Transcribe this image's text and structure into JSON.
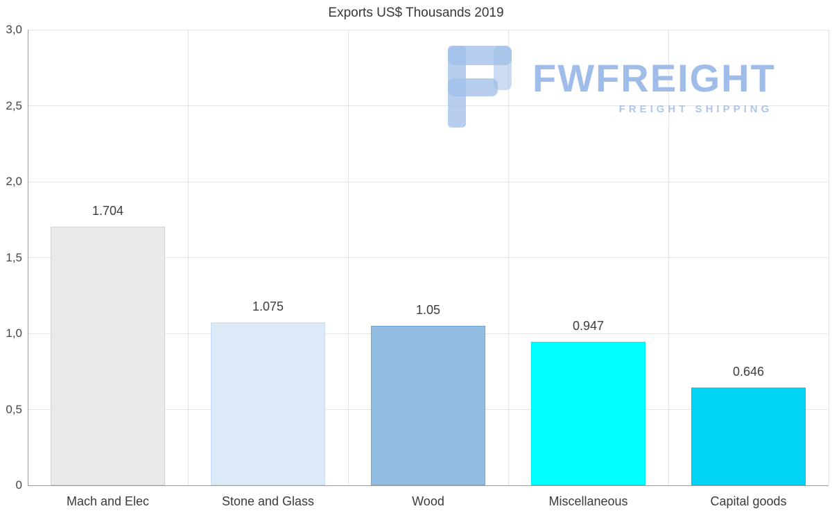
{
  "chart_data": {
    "type": "bar",
    "title": "Exports US$ Thousands 2019",
    "categories": [
      "Mach and Elec",
      "Stone and Glass",
      "Wood",
      "Miscellaneous",
      "Capital goods"
    ],
    "values": [
      1.704,
      1.075,
      1.05,
      0.947,
      0.646
    ],
    "value_labels": [
      "1.704",
      "1.075",
      "1.05",
      "0.947",
      "0.646"
    ],
    "bar_colors": [
      "#e9e9e9",
      "#dce9f7",
      "#92bde1",
      "#00ffff",
      "#00d3f3"
    ],
    "bar_border_colors": [
      "#d2d2d2",
      "#c8ddf1",
      "#6ea6d6",
      "#00e9f2",
      "#00c2e2"
    ],
    "xlabel": "",
    "ylabel": "",
    "ylim": [
      0,
      3
    ],
    "yticks": [
      {
        "label": "0",
        "value": 0
      },
      {
        "label": "0,5",
        "value": 0.5
      },
      {
        "label": "1,0",
        "value": 1
      },
      {
        "label": "1,5",
        "value": 1.5
      },
      {
        "label": "2,0",
        "value": 2
      },
      {
        "label": "2,5",
        "value": 2.5
      },
      {
        "label": "3,0",
        "value": 3
      }
    ],
    "grid": true,
    "legend": false
  },
  "watermark": {
    "brand": "FWFREIGHT",
    "tagline": "FREIGHT SHIPPING",
    "color": "#9fbde8"
  }
}
